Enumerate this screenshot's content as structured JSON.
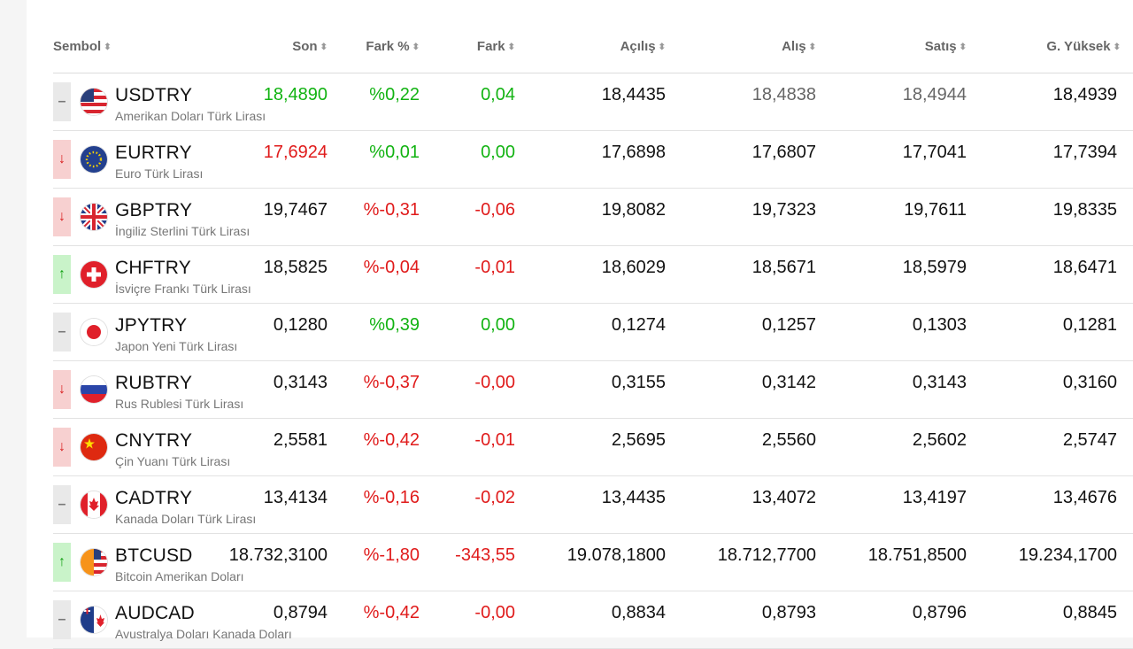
{
  "headers": {
    "sembol": "Sembol",
    "son": "Son",
    "fark_pct": "Fark %",
    "fark": "Fark",
    "acilis": "Açılış",
    "alis": "Alış",
    "satis": "Satış",
    "g_yuksek": "G. Yüksek",
    "sort_glyph": "⬍"
  },
  "rows": [
    {
      "trend": "neutral",
      "trend_icon": "–",
      "flag": "us",
      "symbol": "USDTRY",
      "desc": "Amerikan Doları Türk Lirası",
      "son": "18,4890",
      "son_color": "green",
      "pct": "%0,22",
      "pct_color": "green",
      "fark": "0,04",
      "fark_color": "green",
      "acilis": "18,4435",
      "alis": "18,4838",
      "alis_color": "gray",
      "satis": "18,4944",
      "satis_color": "gray",
      "yuksek": "18,4939"
    },
    {
      "trend": "down",
      "trend_icon": "↓",
      "flag": "eu",
      "symbol": "EURTRY",
      "desc": "Euro Türk Lirası",
      "son": "17,6924",
      "son_color": "red",
      "pct": "%0,01",
      "pct_color": "green",
      "fark": "0,00",
      "fark_color": "green",
      "acilis": "17,6898",
      "alis": "17,6807",
      "alis_color": "",
      "satis": "17,7041",
      "satis_color": "",
      "yuksek": "17,7394"
    },
    {
      "trend": "down",
      "trend_icon": "↓",
      "flag": "gb",
      "symbol": "GBPTRY",
      "desc": "İngiliz Sterlini Türk Lirası",
      "son": "19,7467",
      "son_color": "",
      "pct": "%-0,31",
      "pct_color": "red",
      "fark": "-0,06",
      "fark_color": "red",
      "acilis": "19,8082",
      "alis": "19,7323",
      "alis_color": "",
      "satis": "19,7611",
      "satis_color": "",
      "yuksek": "19,8335"
    },
    {
      "trend": "up",
      "trend_icon": "↑",
      "flag": "ch",
      "symbol": "CHFTRY",
      "desc": "İsviçre Frankı Türk Lirası",
      "son": "18,5825",
      "son_color": "",
      "pct": "%-0,04",
      "pct_color": "red",
      "fark": "-0,01",
      "fark_color": "red",
      "acilis": "18,6029",
      "alis": "18,5671",
      "alis_color": "",
      "satis": "18,5979",
      "satis_color": "",
      "yuksek": "18,6471"
    },
    {
      "trend": "neutral",
      "trend_icon": "–",
      "flag": "jp",
      "symbol": "JPYTRY",
      "desc": "Japon Yeni Türk Lirası",
      "son": "0,1280",
      "son_color": "",
      "pct": "%0,39",
      "pct_color": "green",
      "fark": "0,00",
      "fark_color": "green",
      "acilis": "0,1274",
      "alis": "0,1257",
      "alis_color": "",
      "satis": "0,1303",
      "satis_color": "",
      "yuksek": "0,1281"
    },
    {
      "trend": "down",
      "trend_icon": "↓",
      "flag": "ru",
      "symbol": "RUBTRY",
      "desc": "Rus Rublesi Türk Lirası",
      "son": "0,3143",
      "son_color": "",
      "pct": "%-0,37",
      "pct_color": "red",
      "fark": "-0,00",
      "fark_color": "red",
      "acilis": "0,3155",
      "alis": "0,3142",
      "alis_color": "",
      "satis": "0,3143",
      "satis_color": "",
      "yuksek": "0,3160"
    },
    {
      "trend": "down",
      "trend_icon": "↓",
      "flag": "cn",
      "symbol": "CNYTRY",
      "desc": "Çin Yuanı Türk Lirası",
      "son": "2,5581",
      "son_color": "",
      "pct": "%-0,42",
      "pct_color": "red",
      "fark": "-0,01",
      "fark_color": "red",
      "acilis": "2,5695",
      "alis": "2,5560",
      "alis_color": "",
      "satis": "2,5602",
      "satis_color": "",
      "yuksek": "2,5747"
    },
    {
      "trend": "neutral",
      "trend_icon": "–",
      "flag": "ca",
      "symbol": "CADTRY",
      "desc": "Kanada Doları Türk Lirası",
      "son": "13,4134",
      "son_color": "",
      "pct": "%-0,16",
      "pct_color": "red",
      "fark": "-0,02",
      "fark_color": "red",
      "acilis": "13,4435",
      "alis": "13,4072",
      "alis_color": "",
      "satis": "13,4197",
      "satis_color": "",
      "yuksek": "13,4676"
    },
    {
      "trend": "up",
      "trend_icon": "↑",
      "flag": "btc",
      "symbol": "BTCUSD",
      "desc": "Bitcoin Amerikan Doları",
      "son": "18.732,3100",
      "son_color": "",
      "pct": "%-1,80",
      "pct_color": "red",
      "fark": "-343,55",
      "fark_color": "red",
      "acilis": "19.078,1800",
      "alis": "18.712,7700",
      "alis_color": "",
      "satis": "18.751,8500",
      "satis_color": "",
      "yuksek": "19.234,1700"
    },
    {
      "trend": "neutral",
      "trend_icon": "–",
      "flag": "au",
      "symbol": "AUDCAD",
      "desc": "Avustralya Doları Kanada Doları",
      "son": "0,8794",
      "son_color": "",
      "pct": "%-0,42",
      "pct_color": "red",
      "fark": "-0,00",
      "fark_color": "red",
      "acilis": "0,8834",
      "alis": "0,8793",
      "alis_color": "",
      "satis": "0,8796",
      "satis_color": "",
      "yuksek": "0,8845"
    }
  ]
}
